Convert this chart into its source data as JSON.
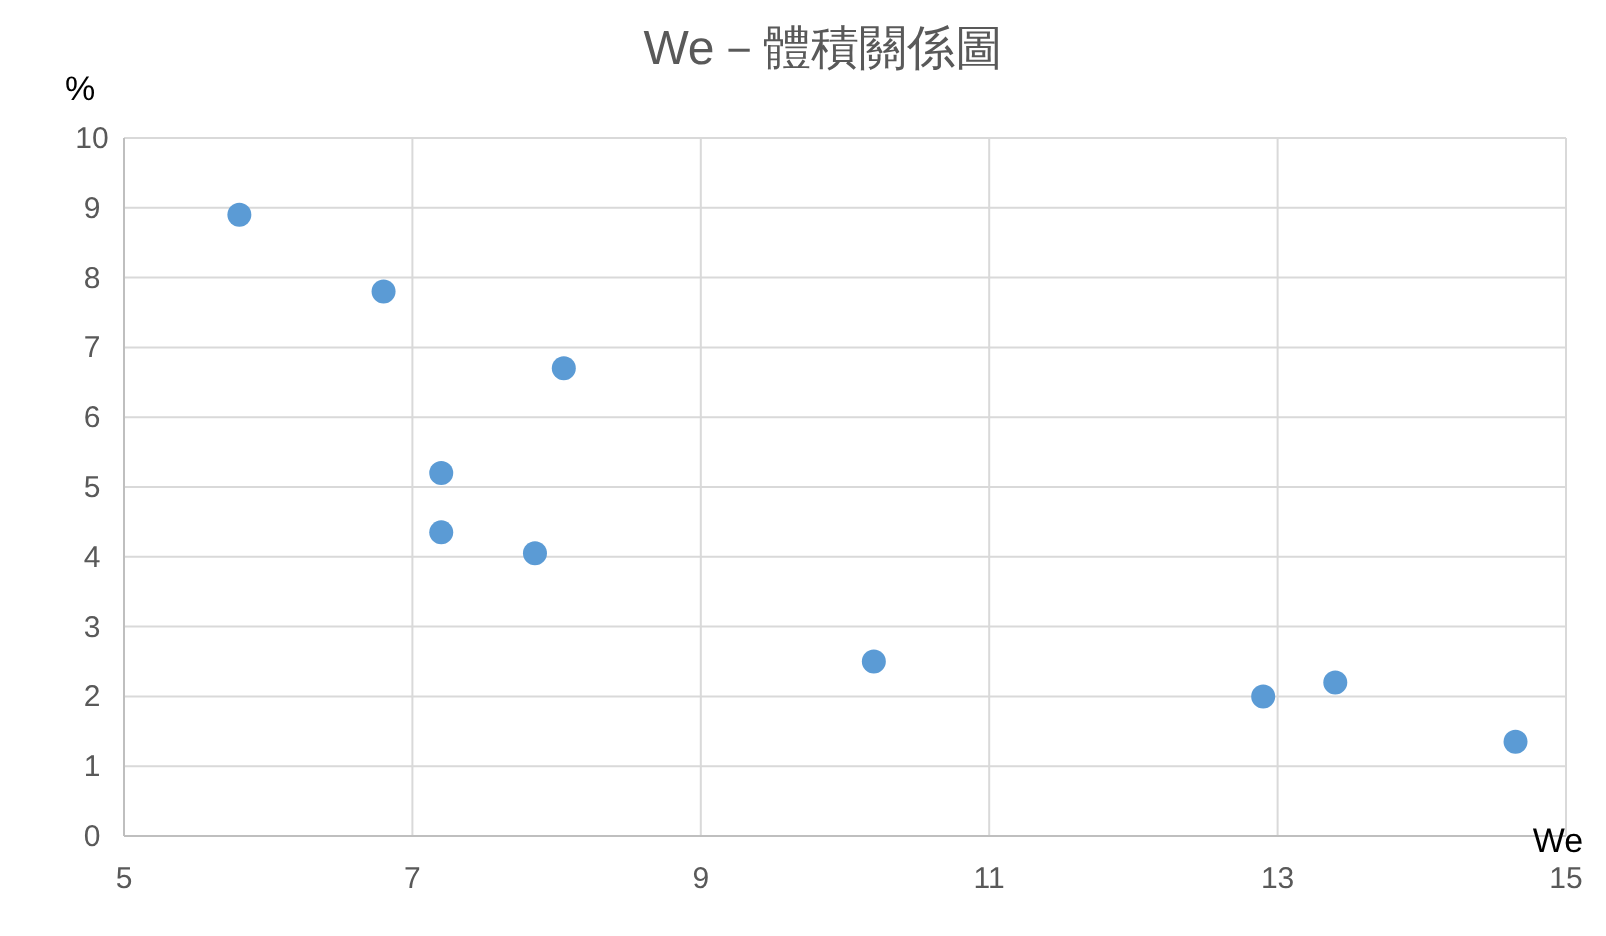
{
  "chart_data": {
    "type": "scatter",
    "title": "We－體積關係圖",
    "xlabel": "We",
    "ylabel": "%",
    "x": [
      5.8,
      6.8,
      8.05,
      7.2,
      7.2,
      7.85,
      10.2,
      12.9,
      13.4,
      14.65
    ],
    "series": [
      {
        "color": "#5b9bd5",
        "values": [
          8.9,
          7.8,
          6.7,
          5.2,
          4.35,
          4.05,
          2.5,
          2.0,
          2.2,
          1.35
        ]
      }
    ],
    "xlim": [
      5,
      15
    ],
    "xticks": [
      5,
      7,
      9,
      11,
      13,
      15
    ],
    "ylim": [
      0,
      10
    ],
    "yticks": [
      0,
      1,
      2,
      3,
      4,
      5,
      6,
      7,
      8,
      9,
      10
    ],
    "grid": true,
    "marker": "circle"
  }
}
